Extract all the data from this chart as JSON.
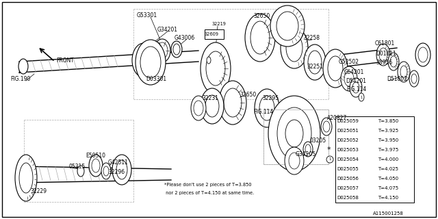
{
  "bg_color": "#ffffff",
  "diagram_number": "A115001258",
  "table_rows": [
    [
      "D025059",
      "T=3.850"
    ],
    [
      "D025051",
      "T=3.925"
    ],
    [
      "D025052",
      "T=3.950"
    ],
    [
      "D025053",
      "T=3.975"
    ],
    [
      "D025054",
      "T=4.000"
    ],
    [
      "D025055",
      "T=4.025"
    ],
    [
      "D025056",
      "T=4.050"
    ],
    [
      "D025057",
      "T=4.075"
    ],
    [
      "D025058",
      "T=4.150"
    ]
  ],
  "starred_row": 3,
  "circled_row": 4,
  "note_line1": "*Please don't use 2 pieces of T=3.850",
  "note_line2": " nor 2 pieces of T=4.150 at same time."
}
